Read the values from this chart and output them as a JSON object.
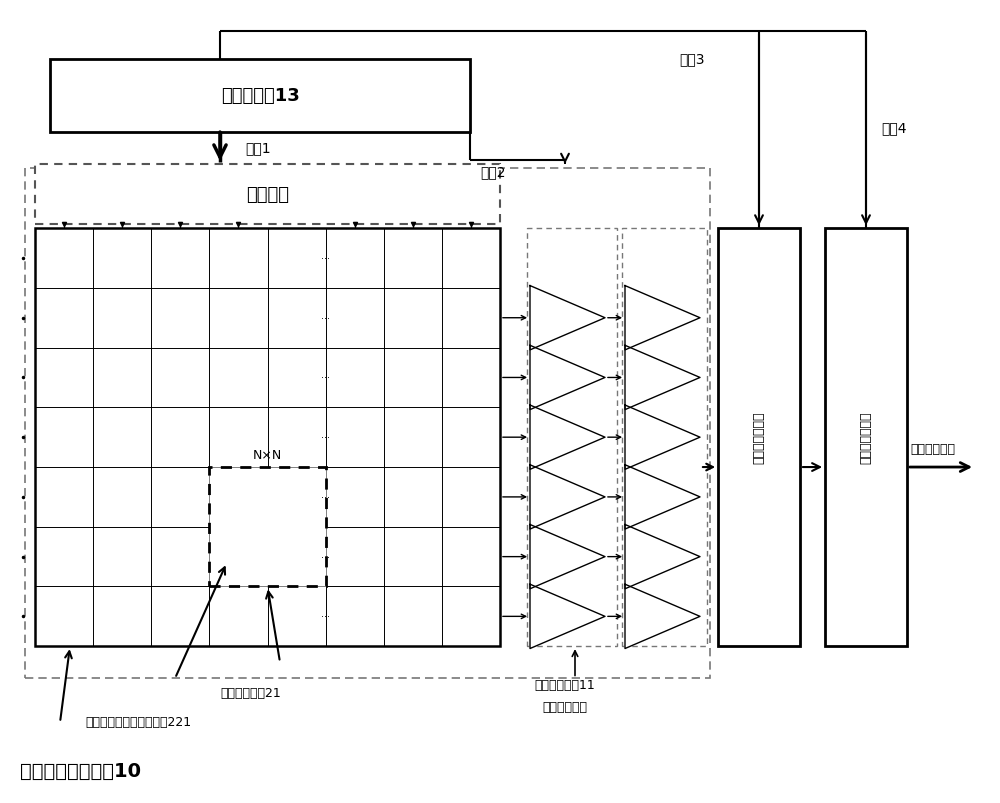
{
  "bg_color": "#ffffff",
  "controller_label": "数字控制器13",
  "col_decoder_label": "列解码器",
  "adc_label": "模数转换器１４",
  "dsp_label": "数字处理器１５",
  "zhiling1": "指令1",
  "zhiling2": "指令2",
  "zhiling3": "指令3",
  "zhiling4": "指令4",
  "nxn": "N×N",
  "pixel_array_label": "彩色像素单元阵刷10",
  "pixel_unit_label": "彩色像素单刷21",
  "metal_label": "金属光栅光电二极管单元221",
  "noise_label": "噪声去除模块11",
  "buffer_label": "和缓存器１２",
  "digital_output": "数字图像输出"
}
